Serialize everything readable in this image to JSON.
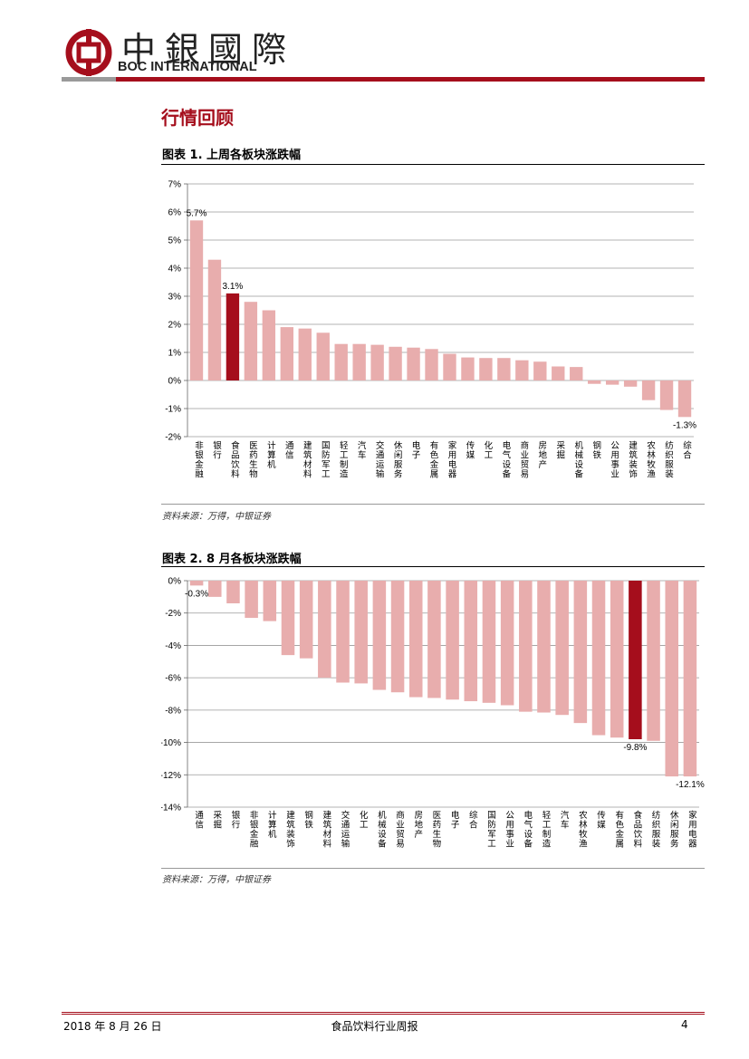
{
  "header": {
    "logo_cn": "中銀國際",
    "logo_en": "BOC INTERNATIONAL",
    "logo_icon": "boc-logo-icon",
    "brand_red": "#a50e1c"
  },
  "section_title": "行情回顾",
  "figures": [
    {
      "title": "图表 1. 上周各板块涨跌幅",
      "source": "资料来源：万得，中银证券"
    },
    {
      "title": "图表 2. 8 月各板块涨跌幅",
      "source": "资料来源：万得，中银证券"
    }
  ],
  "chart_data": [
    {
      "type": "bar",
      "categories": [
        "非银金融",
        "银行",
        "食品饮料",
        "医药生物",
        "计算机",
        "通信",
        "建筑材料",
        "国防军工",
        "轻工制造",
        "汽车",
        "交通运输",
        "休闲服务",
        "电子",
        "有色金属",
        "家用电器",
        "传媒",
        "化工",
        "电气设备",
        "商业贸易",
        "房地产",
        "采掘",
        "机械设备",
        "钢铁",
        "公用事业",
        "建筑装饰",
        "农林牧渔",
        "纺织服装",
        "综合"
      ],
      "values": [
        5.7,
        4.3,
        3.1,
        2.8,
        2.5,
        1.9,
        1.85,
        1.7,
        1.3,
        1.3,
        1.27,
        1.2,
        1.17,
        1.12,
        0.95,
        0.82,
        0.8,
        0.8,
        0.72,
        0.67,
        0.5,
        0.48,
        -0.12,
        -0.15,
        -0.22,
        -0.7,
        -1.05,
        -1.3
      ],
      "highlight_index": 2,
      "data_labels": [
        {
          "index": 0,
          "text": "5.7%"
        },
        {
          "index": 2,
          "text": "3.1%"
        },
        {
          "index": 27,
          "text": "-1.3%"
        }
      ],
      "y_ticks": [
        "7%",
        "6%",
        "5%",
        "4%",
        "3%",
        "2%",
        "1%",
        "0%",
        "-1%",
        "-2%"
      ],
      "ylim": [
        -2,
        7
      ],
      "grid": true,
      "colors": {
        "bar": "#e8adad",
        "highlight": "#a50e1c",
        "grid": "#9a9a9a"
      }
    },
    {
      "type": "bar",
      "categories": [
        "通信",
        "采掘",
        "银行",
        "非银金融",
        "计算机",
        "建筑装饰",
        "钢铁",
        "建筑材料",
        "交通运输",
        "化工",
        "机械设备",
        "商业贸易",
        "房地产",
        "医药生物",
        "电子",
        "综合",
        "国防军工",
        "公用事业",
        "电气设备",
        "轻工制造",
        "汽车",
        "农林牧渔",
        "传媒",
        "有色金属",
        "食品饮料",
        "纺织服装",
        "休闲服务",
        "家用电器"
      ],
      "values": [
        -0.3,
        -1.0,
        -1.4,
        -2.3,
        -2.5,
        -4.6,
        -4.8,
        -6.0,
        -6.3,
        -6.35,
        -6.75,
        -6.9,
        -7.2,
        -7.25,
        -7.35,
        -7.45,
        -7.55,
        -7.7,
        -8.1,
        -8.15,
        -8.3,
        -8.8,
        -9.55,
        -9.7,
        -9.8,
        -9.9,
        -12.1,
        -12.1
      ],
      "highlight_index": 24,
      "data_labels": [
        {
          "index": 0,
          "text": "-0.3%"
        },
        {
          "index": 24,
          "text": "-9.8%"
        },
        {
          "index": 27,
          "text": "-12.1%"
        }
      ],
      "y_ticks": [
        "0%",
        "-2%",
        "-4%",
        "-6%",
        "-8%",
        "-10%",
        "-12%",
        "-14%"
      ],
      "ylim": [
        -14,
        0
      ],
      "grid": true,
      "colors": {
        "bar": "#e8adad",
        "highlight": "#a50e1c",
        "grid": "#9a9a9a"
      }
    }
  ],
  "footer": {
    "date": "2018 年 8 月 26 日",
    "report_name": "食品饮料行业周报",
    "page_number": "4"
  }
}
